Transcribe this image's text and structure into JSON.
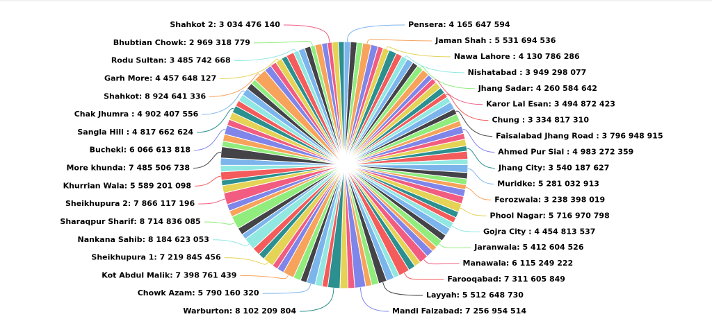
{
  "chart_data": {
    "type": "pie",
    "colors": [
      "#7cb5ec",
      "#434348",
      "#90ed7d",
      "#f7a35c",
      "#8085e9",
      "#f15c80",
      "#e4d354",
      "#2b908f",
      "#f45b5b",
      "#91e8e1"
    ],
    "values": [
      4165647594,
      4300000000,
      3900000000,
      5531694536,
      4700000000,
      3600000000,
      4130786286,
      5200000000,
      4100000000,
      3949298077,
      4400000000,
      3800000000,
      4260584642,
      5000000000,
      3500000000,
      3494872423,
      4600000000,
      4200000000,
      3334817310,
      3900000000,
      5100000000,
      3796948915,
      4800000000,
      3700000000,
      4983272359,
      4000000000,
      4500000000,
      3540187627,
      5300000000,
      3600000000,
      5281032913,
      4200000000,
      3900000000,
      3238398019,
      4700000000,
      5000000000,
      5716970798,
      4100000000,
      3800000000,
      4454813537,
      5200000000,
      4400000000,
      5412604526,
      3700000000,
      4900000000,
      6115249222,
      4300000000,
      4600000000,
      7311605849,
      3900000000,
      5100000000,
      5512648730,
      4800000000,
      4000000000,
      7256954514,
      4500000000,
      5300000000,
      8102209804,
      3800000000,
      4700000000,
      5790160320,
      4200000000,
      5000000000,
      7398761439,
      4600000000,
      3900000000,
      7219845456,
      4400000000,
      5200000000,
      8184623053,
      3700000000,
      4800000000,
      8714836085,
      4100000000,
      4500000000,
      7866117196,
      5000000000,
      3600000000,
      5589201098,
      4300000000,
      4900000000,
      7485506738,
      3800000000,
      4600000000,
      6066613818,
      4200000000,
      5100000000,
      4817662624,
      3900000000,
      4700000000,
      4902407556,
      4400000000,
      3500000000,
      8924641336,
      4800000000,
      4100000000,
      4457648127,
      3700000000,
      5200000000,
      3485742668,
      4300000000,
      4000000000,
      2969318779,
      4600000000,
      3800000000,
      3034476140,
      4200000000,
      3900000000
    ],
    "value_labels": [
      "Pensera: 4 165 647 594",
      null,
      null,
      "Jaman Shah : 5 531 694 536",
      null,
      null,
      "Nawa Lahore : 4 130 786 286",
      null,
      null,
      "Nishatabad : 3 949 298 077",
      null,
      null,
      "Jhang Sadar: 4 260 584 642",
      null,
      null,
      "Karor Lal Esan: 3 494 872 423",
      null,
      null,
      "Chung : 3 334 817 310",
      null,
      null,
      "Faisalabad Jhang Road : 3 796 948 915",
      null,
      null,
      "Ahmed Pur Sial : 4 983 272 359",
      null,
      null,
      "Jhang City: 3 540 187 627",
      null,
      null,
      "Muridke: 5 281 032 913",
      null,
      null,
      "Ferozwala: 3 238 398 019",
      null,
      null,
      "Phool Nagar: 5 716 970 798",
      null,
      null,
      "Gojra City : 4 454 813 537",
      null,
      null,
      "Jaranwala: 5 412 604 526",
      null,
      null,
      "Manawala: 6 115 249 222",
      null,
      null,
      "Farooqabad: 7 311 605 849",
      null,
      null,
      "Layyah: 5 512 648 730",
      null,
      null,
      "Mandi Faizabad: 7 256 954 514",
      null,
      null,
      "Warburton: 8 102 209 804",
      null,
      null,
      "Chowk Azam: 5 790 160 320",
      null,
      null,
      "Kot Abdul Malik: 7 398 761 439",
      null,
      null,
      "Sheikhupura 1: 7 219 845 456",
      null,
      null,
      "Nankana Sahib: 8 184 623 053",
      null,
      null,
      "Sharaqpur Sharif: 8 714 836 085",
      null,
      null,
      "Sheikhupura 2: 7 866 117 196",
      null,
      null,
      "Khurrian Wala: 5 589 201 098",
      null,
      null,
      "More khunda: 7 485 506 738",
      null,
      null,
      "Bucheki: 6 066 613 818",
      null,
      null,
      "Sangla Hill : 4 817 662 624",
      null,
      null,
      "Chak Jhumra : 4 902 407 556",
      null,
      null,
      "Shahkot: 8 924 641 336",
      null,
      null,
      "Garh More: 4 457 648 127",
      null,
      null,
      "Rodu Sultan: 3 485 742 668",
      null,
      null,
      "Bhubtian Chowk: 2 969 318 779",
      null,
      null,
      "Shahkot 2: 3 034 476 140",
      null,
      null
    ]
  }
}
